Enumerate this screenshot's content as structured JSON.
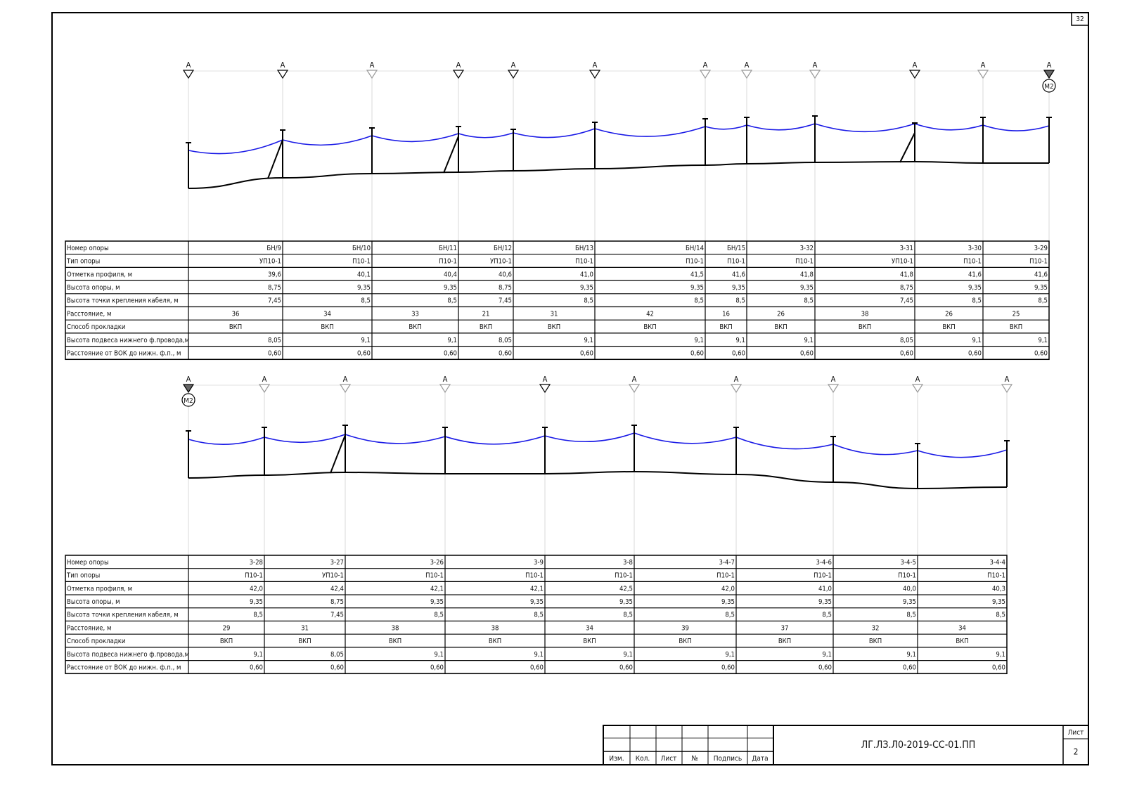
{
  "sheet_corner": "32",
  "profiles": [
    {
      "markers": [
        "А",
        "А",
        "А",
        "А",
        "А",
        "А",
        "А",
        "А",
        "А",
        "А",
        "А",
        "А"
      ],
      "terminal_label": "М2"
    },
    {
      "markers": [
        "А",
        "А",
        "А",
        "А",
        "А",
        "А",
        "А",
        "А",
        "А",
        "А"
      ],
      "terminal_label": "М2"
    }
  ],
  "tables": [
    {
      "rows": [
        {
          "label": "Номер опоры",
          "values": [
            "БН/9",
            "БН/10",
            "БН/11",
            "БН/12",
            "БН/13",
            "БН/14",
            "БН/15",
            "3-32",
            "3-31",
            "3-30",
            "3-29"
          ]
        },
        {
          "label": "Тип опоры",
          "values": [
            "УП10-1",
            "П10-1",
            "П10-1",
            "УП10-1",
            "П10-1",
            "П10-1",
            "П10-1",
            "П10-1",
            "УП10-1",
            "П10-1",
            "П10-1"
          ]
        },
        {
          "label": "Отметка профиля, м",
          "values": [
            "39,6",
            "40,1",
            "40,4",
            "40,6",
            "41,0",
            "41,5",
            "41,6",
            "41,8",
            "41,8",
            "41,6",
            "41,6"
          ]
        },
        {
          "label": "Высота опоры, м",
          "values": [
            "8,75",
            "9,35",
            "9,35",
            "8,75",
            "9,35",
            "9,35",
            "9,35",
            "9,35",
            "8,75",
            "9,35",
            "9,35"
          ]
        },
        {
          "label": "Высота точки крепления кабеля, м",
          "values": [
            "7,45",
            "8,5",
            "8,5",
            "7,45",
            "8,5",
            "8,5",
            "8,5",
            "8,5",
            "7,45",
            "8,5",
            "8,5"
          ]
        },
        {
          "label": "Расстояние, м",
          "values": [
            "36",
            "34",
            "33",
            "21",
            "31",
            "42",
            "16",
            "26",
            "38",
            "26",
            "25"
          ]
        },
        {
          "label": "Способ прокладки",
          "values": [
            "ВКП",
            "ВКП",
            "ВКП",
            "ВКП",
            "ВКП",
            "ВКП",
            "ВКП",
            "ВКП",
            "ВКП",
            "ВКП",
            "ВКП"
          ]
        },
        {
          "label": "Высота подвеса нижнего ф.провода,м",
          "values": [
            "8,05",
            "9,1",
            "9,1",
            "8,05",
            "9,1",
            "9,1",
            "9,1",
            "9,1",
            "8,05",
            "9,1",
            "9,1"
          ]
        },
        {
          "label": "Расстояние от ВОК до нижн. ф.п., м",
          "values": [
            "0,60",
            "0,60",
            "0,60",
            "0,60",
            "0,60",
            "0,60",
            "0,60",
            "0,60",
            "0,60",
            "0,60",
            "0,60"
          ]
        }
      ]
    },
    {
      "rows": [
        {
          "label": "Номер опоры",
          "values": [
            "3-28",
            "3-27",
            "3-26",
            "3-9",
            "3-8",
            "3-4-7",
            "3-4-6",
            "3-4-5",
            "3-4-4"
          ]
        },
        {
          "label": "Тип опоры",
          "values": [
            "П10-1",
            "УП10-1",
            "П10-1",
            "П10-1",
            "П10-1",
            "П10-1",
            "П10-1",
            "П10-1",
            "П10-1"
          ]
        },
        {
          "label": "Отметка профиля, м",
          "values": [
            "42,0",
            "42,4",
            "42,1",
            "42,1",
            "42,5",
            "42,0",
            "41,0",
            "40,0",
            "40,3"
          ]
        },
        {
          "label": "Высота опоры, м",
          "values": [
            "9,35",
            "8,75",
            "9,35",
            "9,35",
            "9,35",
            "9,35",
            "9,35",
            "9,35",
            "9,35"
          ]
        },
        {
          "label": "Высота точки крепления кабеля, м",
          "values": [
            "8,5",
            "7,45",
            "8,5",
            "8,5",
            "8,5",
            "8,5",
            "8,5",
            "8,5",
            "8,5"
          ]
        },
        {
          "label": "Расстояние, м",
          "values": [
            "29",
            "31",
            "38",
            "38",
            "34",
            "39",
            "37",
            "32",
            "34"
          ]
        },
        {
          "label": "Способ прокладки",
          "values": [
            "ВКП",
            "ВКП",
            "ВКП",
            "ВКП",
            "ВКП",
            "ВКП",
            "ВКП",
            "ВКП",
            "ВКП"
          ]
        },
        {
          "label": "Высота подвеса нижнего ф.провода,м",
          "values": [
            "9,1",
            "8,05",
            "9,1",
            "9,1",
            "9,1",
            "9,1",
            "9,1",
            "9,1",
            "9,1"
          ]
        },
        {
          "label": "Расстояние от ВОК до нижн. ф.п., м",
          "values": [
            "0,60",
            "0,60",
            "0,60",
            "0,60",
            "0,60",
            "0,60",
            "0,60",
            "0,60",
            "0,60"
          ]
        }
      ]
    }
  ],
  "title_block": {
    "columns": [
      "Изм.",
      "Кол.",
      "Лист",
      "№",
      "Подпись",
      "Дата"
    ],
    "code": "ЛГ.ЛЗ.Л0-2019-СС-01.ПП",
    "sheet_label": "Лист",
    "sheet_number": "2"
  }
}
